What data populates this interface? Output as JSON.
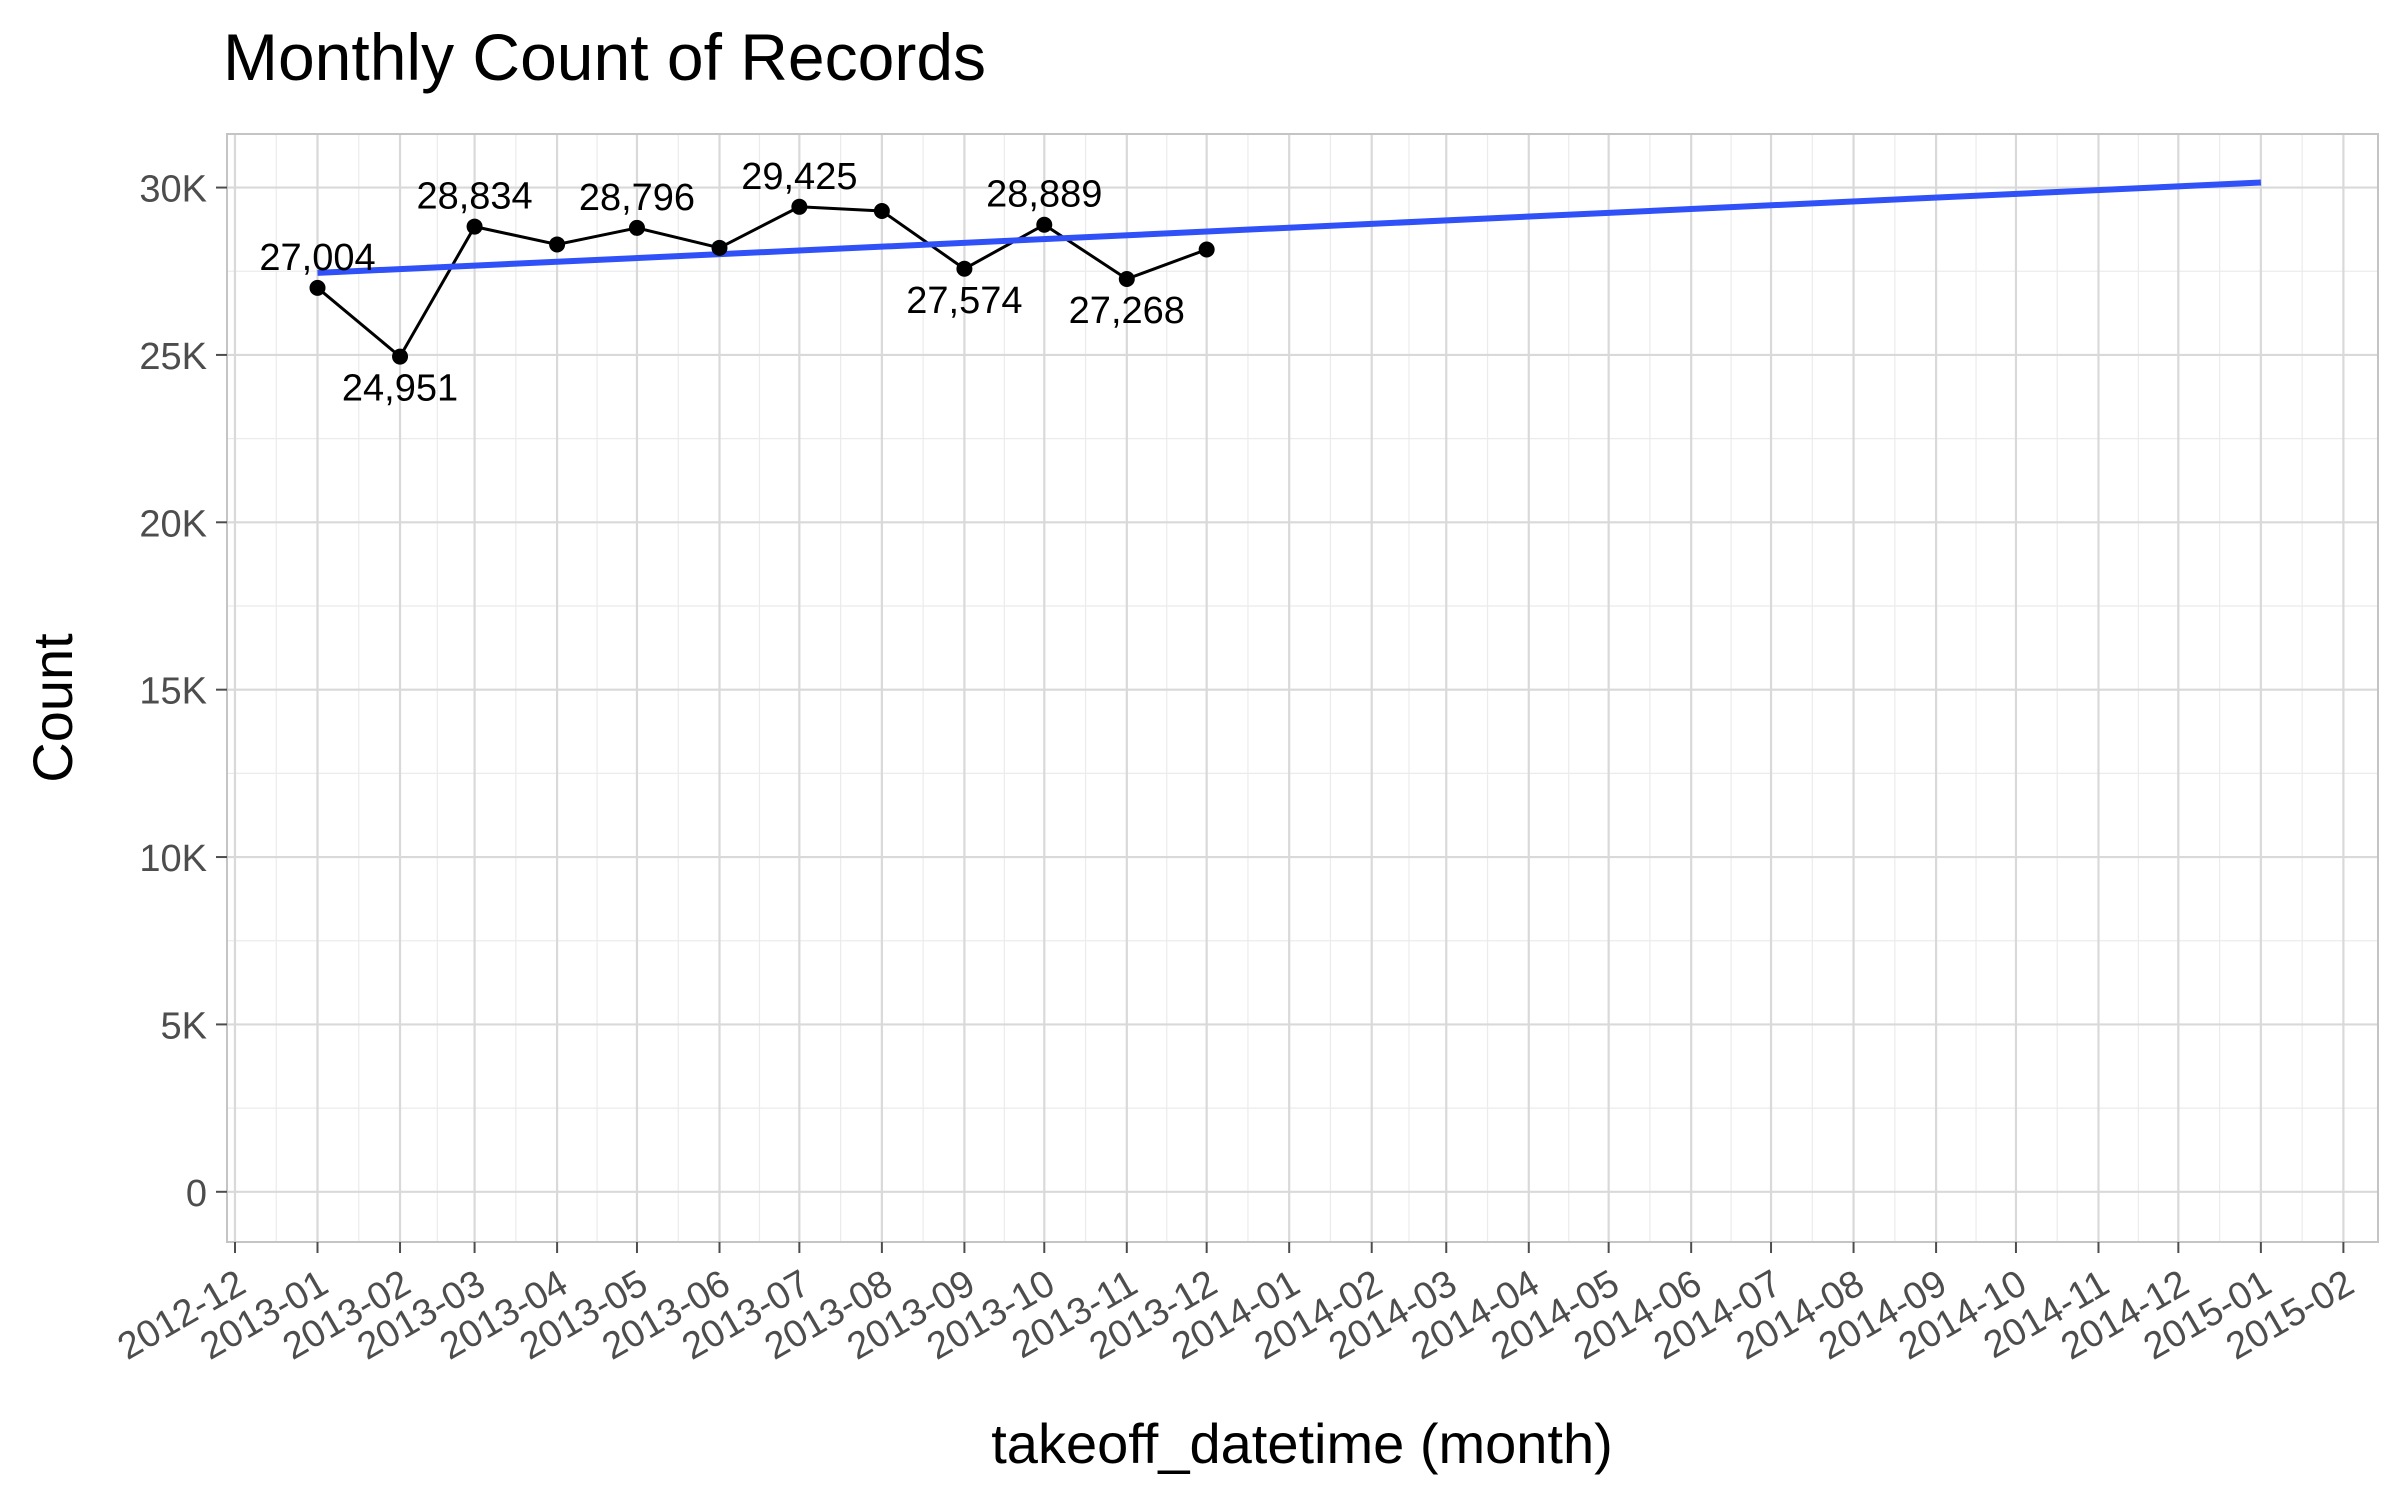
{
  "chart_data": {
    "type": "line",
    "title": "Monthly Count of Records",
    "xlabel": "takeoff_datetime (month)",
    "ylabel": "Count",
    "x_ticks": [
      "2012-12",
      "2013-01",
      "2013-02",
      "2013-03",
      "2013-04",
      "2013-05",
      "2013-06",
      "2013-07",
      "2013-08",
      "2013-09",
      "2013-10",
      "2013-11",
      "2013-12",
      "2014-01",
      "2014-02",
      "2014-03",
      "2014-04",
      "2014-05",
      "2014-06",
      "2014-07",
      "2014-08",
      "2014-09",
      "2014-10",
      "2014-11",
      "2014-12",
      "2015-01",
      "2015-02"
    ],
    "x_range": [
      "2012-11-28",
      "2015-02-14"
    ],
    "y_ticks": [
      {
        "value": 0,
        "label": "0"
      },
      {
        "value": 5000,
        "label": "5K"
      },
      {
        "value": 10000,
        "label": "10K"
      },
      {
        "value": 15000,
        "label": "15K"
      },
      {
        "value": 20000,
        "label": "20K"
      },
      {
        "value": 25000,
        "label": "25K"
      },
      {
        "value": 30000,
        "label": "30K"
      }
    ],
    "ylim": [
      -1500,
      31600
    ],
    "grid": true,
    "series": [
      {
        "type": "line",
        "color": "#000000",
        "points": [
          {
            "x": "2013-01-01",
            "y": 27004,
            "label": "27,004"
          },
          {
            "x": "2013-02-01",
            "y": 24951,
            "label": "24,951"
          },
          {
            "x": "2013-03-01",
            "y": 28834,
            "label": "28,834"
          },
          {
            "x": "2013-04-01",
            "y": 28300,
            "label": ""
          },
          {
            "x": "2013-05-01",
            "y": 28796,
            "label": "28,796"
          },
          {
            "x": "2013-06-01",
            "y": 28200,
            "label": ""
          },
          {
            "x": "2013-07-01",
            "y": 29425,
            "label": "29,425"
          },
          {
            "x": "2013-08-01",
            "y": 29300,
            "label": ""
          },
          {
            "x": "2013-09-01",
            "y": 27574,
            "label": "27,574"
          },
          {
            "x": "2013-10-01",
            "y": 28889,
            "label": "28,889"
          },
          {
            "x": "2013-11-01",
            "y": 27268,
            "label": "27,268"
          },
          {
            "x": "2013-12-01",
            "y": 28150,
            "label": ""
          }
        ]
      },
      {
        "type": "trend",
        "color": "#3050f8",
        "points": [
          {
            "x": "2013-01-01",
            "y": 27450
          },
          {
            "x": "2015-01-01",
            "y": 30150
          }
        ]
      }
    ]
  }
}
